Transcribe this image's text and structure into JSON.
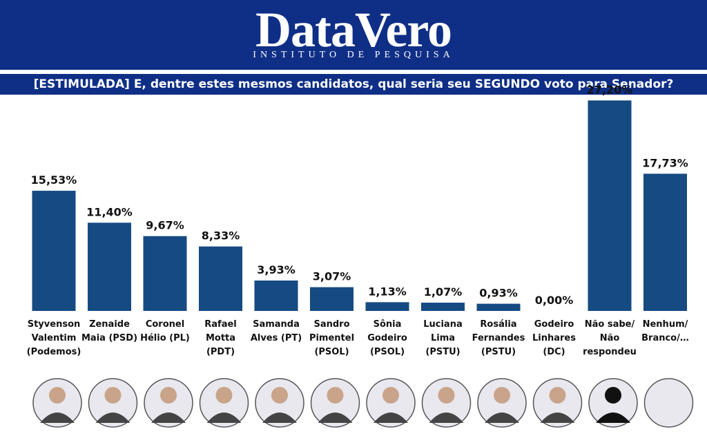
{
  "brand": {
    "name": "DataVero",
    "tagline": "INSTITUTO DE PESQUISA"
  },
  "chart_data": {
    "type": "bar",
    "title": "[ESTIMULADA] E, dentre estes mesmos candidatos, qual seria seu SEGUNDO voto para Senador?",
    "categories": [
      "Styvenson Valentim (Podemos)",
      "Zenaide Maia (PSD)",
      "Coronel Hélio (PL)",
      "Rafael Motta (PDT)",
      "Samanda Alves (PT)",
      "Sandro Pimentel (PSOL)",
      "Sônia Godeiro (PSOL)",
      "Luciana Lima (PSTU)",
      "Rosália Fernandes (PSTU)",
      "Godeiro Linhares (DC)",
      "Não sabe/ Não respondeu",
      "Nenhum/ Branco/…"
    ],
    "values": [
      15.53,
      11.4,
      9.67,
      8.33,
      3.93,
      3.07,
      1.13,
      1.07,
      0.93,
      0.0,
      27.2,
      17.73
    ],
    "value_labels": [
      "15,53%",
      "11,40%",
      "9,67%",
      "8,33%",
      "3,93%",
      "3,07%",
      "1,13%",
      "1,07%",
      "0,93%",
      "0,00%",
      "27,20%",
      "17,73%"
    ],
    "color": "#164a82"
  }
}
